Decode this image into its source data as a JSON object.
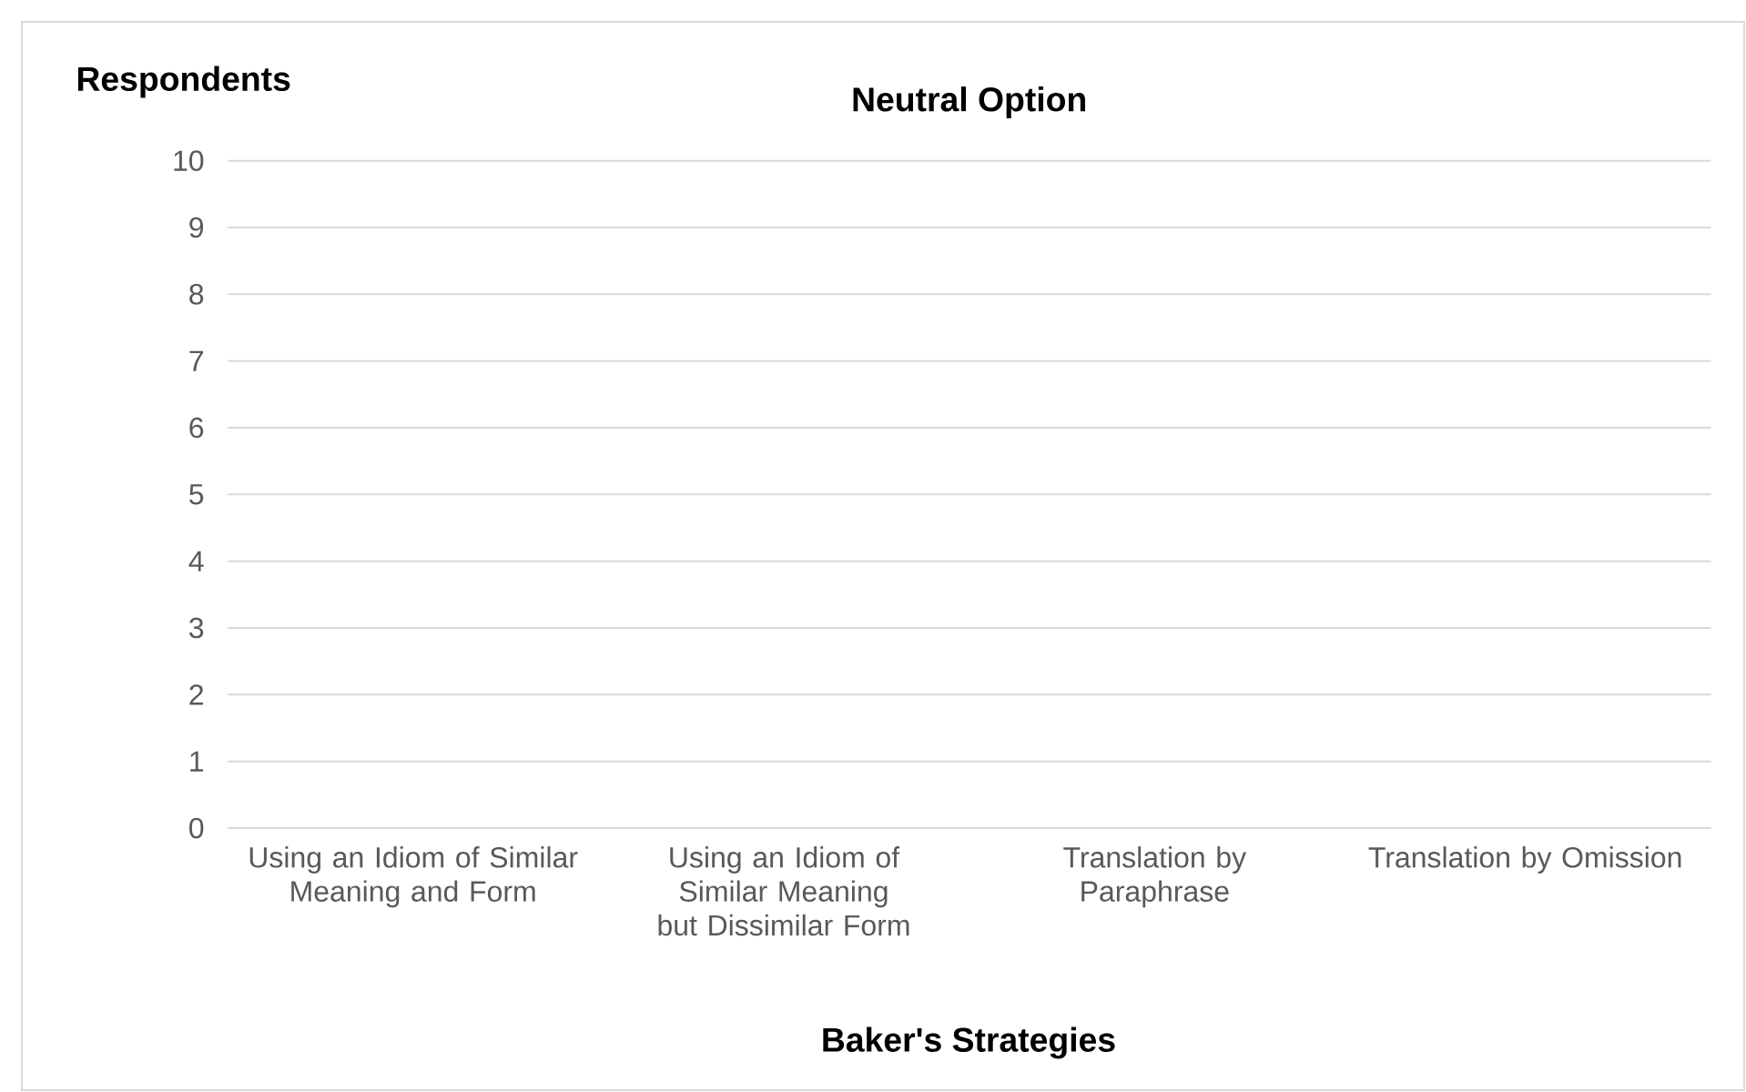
{
  "chart_data": {
    "type": "bar",
    "title": "Neutral Option",
    "xlabel": "Baker's Strategies",
    "ylabel": "Respondents",
    "categories": [
      "Using an Idiom of Similar Meaning and Form",
      "Using an Idiom of Similar Meaning but Dissimilar Form",
      "Translation by Paraphrase",
      "Translation by Omission"
    ],
    "values": [
      0,
      0,
      0,
      0
    ],
    "ylim": [
      0,
      10
    ],
    "yticks": [
      0,
      1,
      2,
      3,
      4,
      5,
      6,
      7,
      8,
      9,
      10
    ],
    "grid": "y"
  }
}
